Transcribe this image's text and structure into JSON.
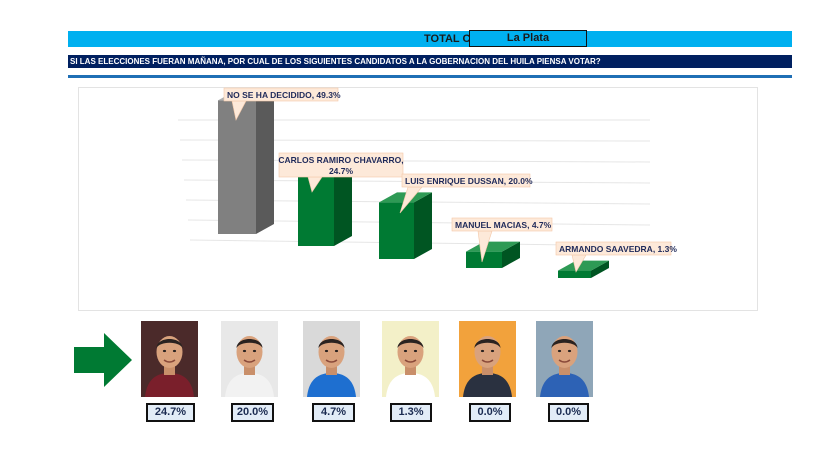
{
  "header": {
    "title": "TOTAL CONSOLIDADO",
    "location": "La Plata"
  },
  "question": "SI LAS ELECCIONES FUERAN MAÑANA, POR CUAL DE LOS SIGUIENTES CANDIDATOS A LA GOBERNACION DEL HUILA PIENSA VOTAR?",
  "colors": {
    "title_bar": "#00b0f0",
    "question_bar": "#002060",
    "bar_gray": "#808080",
    "bar_green": "#007a33",
    "callout_fill": "#fde9d9",
    "label_text": "#1f2a5a"
  },
  "chart_data": {
    "type": "bar",
    "categories": [
      "NO SE HA DECIDIDO",
      "CARLOS RAMIRO CHAVARRO",
      "LUIS ENRIQUE DUSSAN",
      "MANUEL MACIAS",
      "ARMANDO SAAVEDRA"
    ],
    "values": [
      49.3,
      24.7,
      20.0,
      4.7,
      1.3
    ],
    "data_labels": [
      "NO SE HA DECIDIDO, 49.3%",
      "CARLOS RAMIRO CHAVARRO, 24.7%",
      "LUIS ENRIQUE DUSSAN, 20.0%",
      "MANUEL MACIAS, 4.7%",
      "ARMANDO SAAVEDRA, 1.3%"
    ],
    "title": "",
    "xlabel": "",
    "ylabel": "",
    "ylim": [
      0,
      60
    ],
    "grid": true,
    "legend": "none",
    "style": "3d-column"
  },
  "candidates": [
    {
      "photo_icon": "candidate-portrait-icon",
      "percent": "24.7%",
      "shirt": "#7a1f2b",
      "bg": "#4b2a2a"
    },
    {
      "photo_icon": "candidate-portrait-icon",
      "percent": "20.0%",
      "shirt": "#f2f2f2",
      "bg": "#e8e8e8"
    },
    {
      "photo_icon": "candidate-portrait-icon",
      "percent": "4.7%",
      "shirt": "#1e6fd0",
      "bg": "#d9d9d9"
    },
    {
      "photo_icon": "candidate-portrait-icon",
      "percent": "1.3%",
      "shirt": "#ffffff",
      "bg": "#f3f0c8"
    },
    {
      "photo_icon": "candidate-portrait-icon",
      "percent": "0.0%",
      "shirt": "#2a3140",
      "bg": "#f2a23c"
    },
    {
      "photo_icon": "candidate-portrait-icon",
      "percent": "0.0%",
      "shirt": "#2d62b5",
      "bg": "#8fa6b8"
    }
  ],
  "arrow": {
    "icon": "right-arrow-icon",
    "color": "#007a33"
  }
}
